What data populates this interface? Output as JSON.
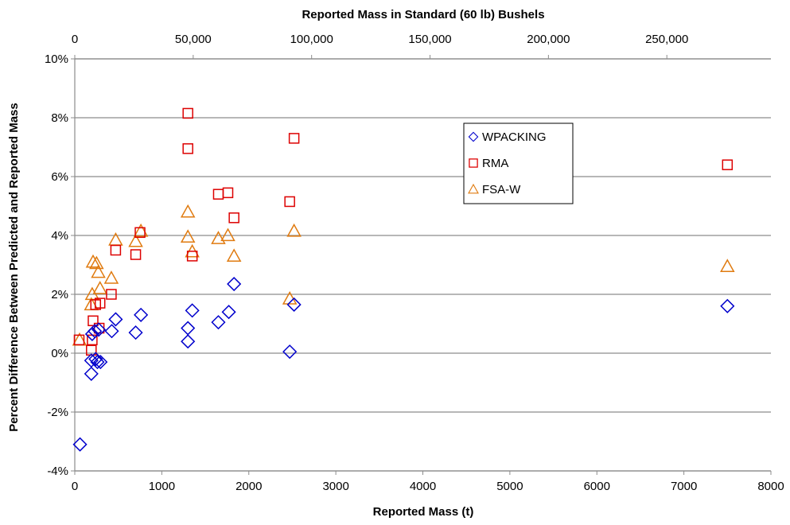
{
  "chart_data": {
    "type": "scatter",
    "xlabel": "Reported Mass (t)",
    "x2label": "Reported Mass in Standard (60 lb) Bushels",
    "ylabel": "Percent Difference Between Predicted and Reported Mass",
    "xlim": [
      0,
      8000
    ],
    "ylim": [
      -0.04,
      0.1
    ],
    "x2lim": [
      0,
      293936
    ],
    "x_ticks": [
      "0",
      "1000",
      "2000",
      "3000",
      "4000",
      "5000",
      "6000",
      "7000",
      "8000"
    ],
    "x2_ticks": [
      "0",
      "50,000",
      "100,000",
      "150,000",
      "200,000",
      "250,000"
    ],
    "y_ticks": [
      "-4%",
      "-2%",
      "0%",
      "2%",
      "4%",
      "6%",
      "8%",
      "10%"
    ],
    "grid": "horizontal",
    "legend_position": "upper-right inside plot",
    "series": [
      {
        "name": "WPACKING",
        "marker": "diamond",
        "color": "#0000cc",
        "points": [
          {
            "x": 60,
            "y": -0.031
          },
          {
            "x": 190,
            "y": -0.007
          },
          {
            "x": 190,
            "y": -0.0025
          },
          {
            "x": 200,
            "y": 0.0065
          },
          {
            "x": 230,
            "y": 0.0075
          },
          {
            "x": 240,
            "y": -0.002
          },
          {
            "x": 260,
            "y": -0.003
          },
          {
            "x": 275,
            "y": 0.008
          },
          {
            "x": 295,
            "y": -0.003
          },
          {
            "x": 425,
            "y": 0.0075
          },
          {
            "x": 470,
            "y": 0.0115
          },
          {
            "x": 700,
            "y": 0.007
          },
          {
            "x": 760,
            "y": 0.013
          },
          {
            "x": 1300,
            "y": 0.004
          },
          {
            "x": 1300,
            "y": 0.0085
          },
          {
            "x": 1350,
            "y": 0.0145
          },
          {
            "x": 1650,
            "y": 0.0105
          },
          {
            "x": 1770,
            "y": 0.014
          },
          {
            "x": 1830,
            "y": 0.0235
          },
          {
            "x": 2470,
            "y": 0.0005
          },
          {
            "x": 2520,
            "y": 0.0165
          },
          {
            "x": 7500,
            "y": 0.016
          }
        ]
      },
      {
        "name": "RMA",
        "marker": "square",
        "color": "#dd0000",
        "points": [
          {
            "x": 50,
            "y": 0.0045
          },
          {
            "x": 190,
            "y": 0.001
          },
          {
            "x": 200,
            "y": 0.0045
          },
          {
            "x": 210,
            "y": 0.011
          },
          {
            "x": 240,
            "y": 0.0165
          },
          {
            "x": 280,
            "y": 0.0085
          },
          {
            "x": 290,
            "y": 0.017
          },
          {
            "x": 420,
            "y": 0.02
          },
          {
            "x": 470,
            "y": 0.035
          },
          {
            "x": 700,
            "y": 0.0335
          },
          {
            "x": 750,
            "y": 0.041
          },
          {
            "x": 1300,
            "y": 0.0695
          },
          {
            "x": 1300,
            "y": 0.0815
          },
          {
            "x": 1350,
            "y": 0.033
          },
          {
            "x": 1650,
            "y": 0.054
          },
          {
            "x": 1760,
            "y": 0.0545
          },
          {
            "x": 1830,
            "y": 0.046
          },
          {
            "x": 2470,
            "y": 0.0515
          },
          {
            "x": 2520,
            "y": 0.073
          },
          {
            "x": 7500,
            "y": 0.064
          }
        ]
      },
      {
        "name": "FSA-W",
        "marker": "triangle",
        "color": "#e07b10",
        "points": [
          {
            "x": 55,
            "y": 0.0045
          },
          {
            "x": 190,
            "y": 0.0165
          },
          {
            "x": 200,
            "y": 0.02
          },
          {
            "x": 210,
            "y": 0.031
          },
          {
            "x": 250,
            "y": 0.0305
          },
          {
            "x": 270,
            "y": 0.0275
          },
          {
            "x": 290,
            "y": 0.022
          },
          {
            "x": 420,
            "y": 0.0255
          },
          {
            "x": 470,
            "y": 0.0385
          },
          {
            "x": 700,
            "y": 0.038
          },
          {
            "x": 760,
            "y": 0.0415
          },
          {
            "x": 1300,
            "y": 0.048
          },
          {
            "x": 1300,
            "y": 0.0395
          },
          {
            "x": 1350,
            "y": 0.0345
          },
          {
            "x": 1650,
            "y": 0.039
          },
          {
            "x": 1760,
            "y": 0.04
          },
          {
            "x": 1830,
            "y": 0.033
          },
          {
            "x": 2470,
            "y": 0.0185
          },
          {
            "x": 2520,
            "y": 0.0415
          },
          {
            "x": 7500,
            "y": 0.0295
          }
        ]
      }
    ]
  }
}
